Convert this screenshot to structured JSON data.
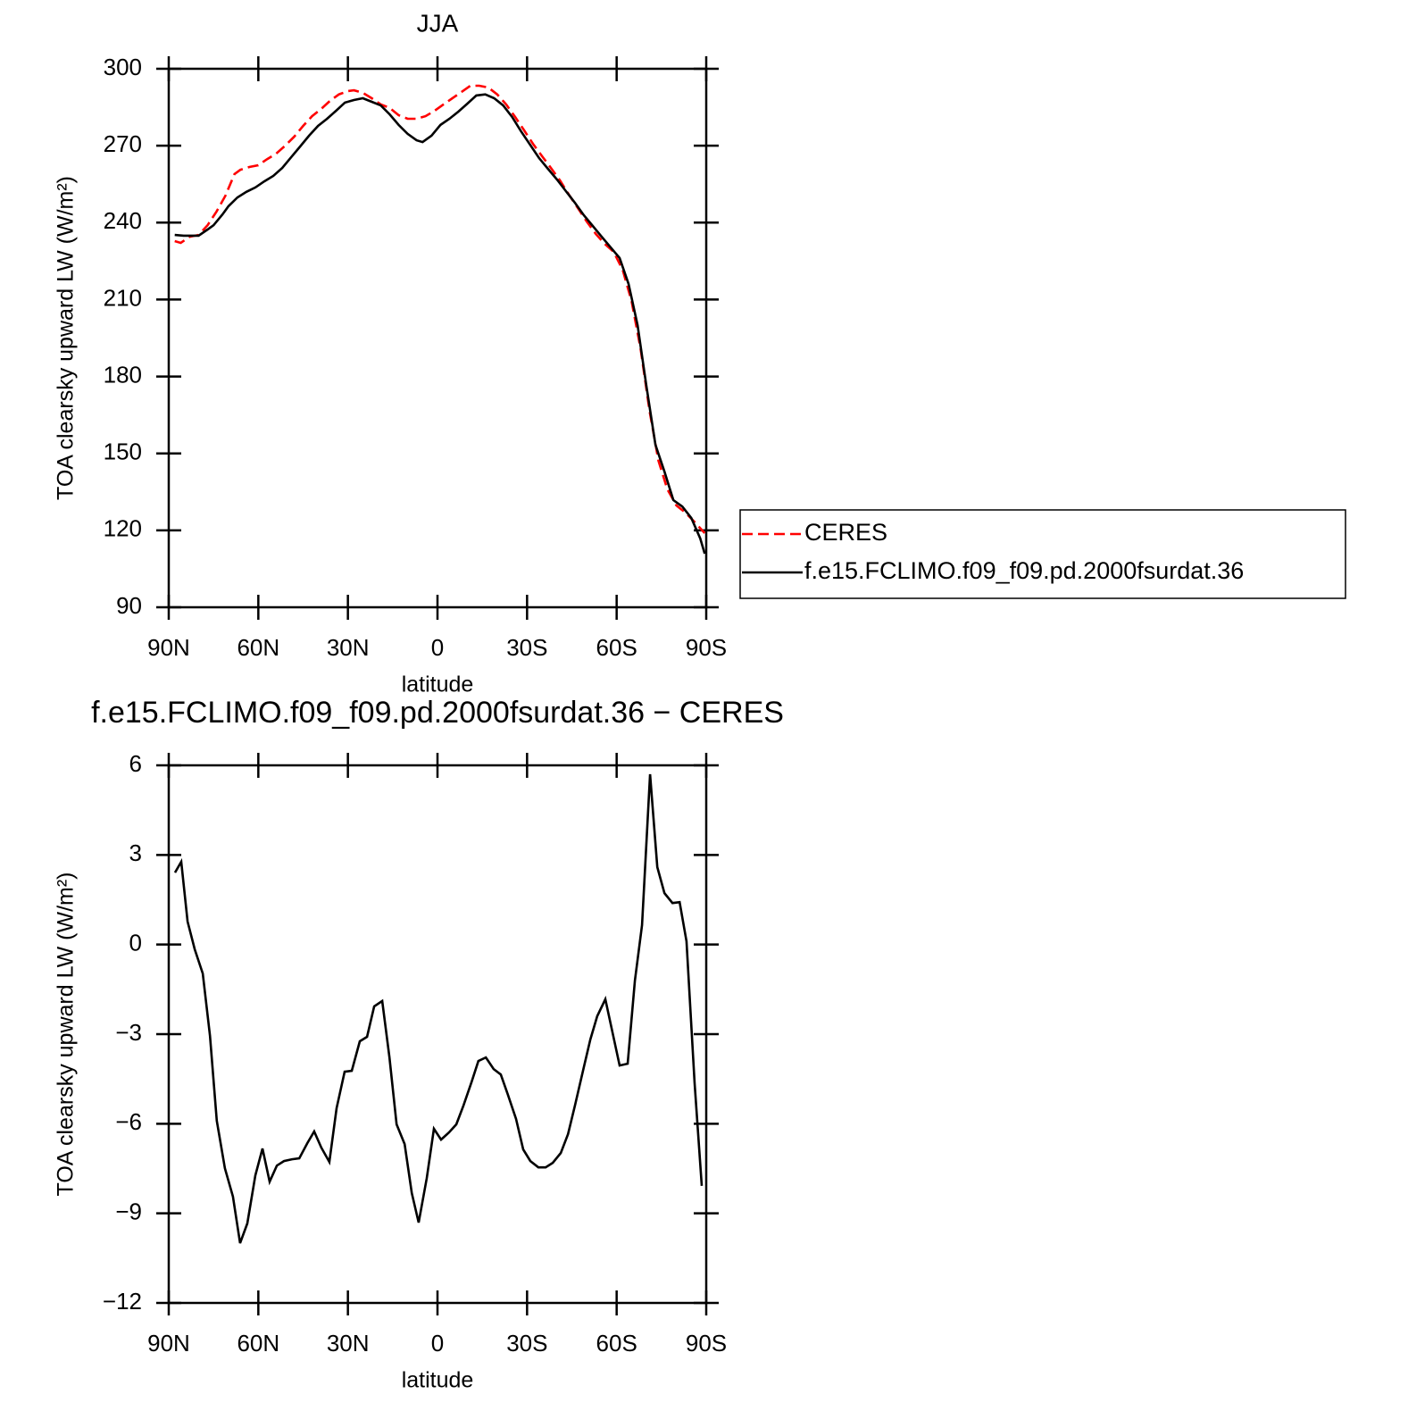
{
  "chart_data": [
    {
      "type": "line",
      "title": "JJA",
      "xlabel": "latitude",
      "ylabel": "TOA clearsky upward LW (W/m²)",
      "xlim": [
        90,
        -90
      ],
      "xticks": [
        {
          "value": 90,
          "label": "90N"
        },
        {
          "value": 60,
          "label": "60N"
        },
        {
          "value": 30,
          "label": "30N"
        },
        0,
        {
          "value": -30,
          "label": "30S"
        },
        {
          "value": -60,
          "label": "60S"
        },
        {
          "value": -90,
          "label": "90S"
        }
      ],
      "ylim": [
        90,
        300
      ],
      "yticks": [
        90,
        120,
        150,
        180,
        210,
        240,
        270,
        300
      ],
      "legend": "right",
      "series": [
        {
          "name": "CERES",
          "color": "#ff0000",
          "linestyle": "dashed",
          "x": [
            88,
            86,
            83,
            80,
            77,
            74,
            71,
            68,
            66,
            63,
            60,
            57,
            54,
            51,
            48,
            45,
            42,
            39,
            36,
            33,
            30,
            28,
            25,
            22,
            19,
            16,
            13,
            10,
            7,
            4,
            1,
            -2,
            -5,
            -8,
            -11,
            -14,
            -17,
            -20,
            -23,
            -26,
            -29,
            -32,
            -35,
            -38,
            -41,
            -44,
            -47,
            -50,
            -53,
            -56,
            -59,
            -62,
            -65,
            -68,
            -71,
            -74,
            -77,
            -80,
            -83,
            -86,
            -89.5
          ],
          "values": [
            232.8,
            232.1,
            234.5,
            235.2,
            239,
            244.3,
            250.5,
            258.9,
            260.6,
            261.7,
            262.4,
            264.8,
            266.9,
            270,
            273.5,
            277.7,
            281.5,
            284.3,
            287.5,
            290,
            291.3,
            291.6,
            290.6,
            288.5,
            286.1,
            284.7,
            281.9,
            280.5,
            280.5,
            281.5,
            283.6,
            286.1,
            288.5,
            290.9,
            293.4,
            293.4,
            292.7,
            290,
            286.1,
            281.2,
            276,
            270.7,
            265.9,
            261.3,
            256.5,
            250.9,
            245.7,
            240.4,
            235.6,
            231.7,
            228.6,
            221.6,
            209.4,
            191,
            166.6,
            147.1,
            136,
            129.7,
            126.9,
            123.4,
            118.9
          ]
        },
        {
          "name": "f.e15.FCLIMO.f09_f09.pd.2000fsurdat.36",
          "color": "#000000",
          "linestyle": "solid",
          "x": [
            88,
            85,
            80,
            77,
            75,
            72,
            70,
            67,
            64,
            61,
            58,
            55,
            52,
            49,
            46,
            43,
            40,
            37,
            34,
            31,
            28,
            25,
            22,
            19,
            16,
            13,
            10,
            7,
            5,
            2,
            -1,
            -4,
            -7,
            -10,
            -13,
            -16,
            -19,
            -22,
            -25,
            -28,
            -31,
            -34,
            -37,
            -40,
            -43,
            -46,
            -49,
            -52,
            -55,
            -58,
            -61,
            -64,
            -67,
            -70,
            -73,
            -76,
            -79,
            -82,
            -85,
            -88,
            -89.5
          ],
          "values": [
            235.2,
            234.9,
            234.9,
            237.3,
            239,
            243.2,
            246.4,
            249.8,
            252,
            253.7,
            256.1,
            258.2,
            261.3,
            265.5,
            269.7,
            273.9,
            277.7,
            280.5,
            283.6,
            286.8,
            287.8,
            288.5,
            287.1,
            285.7,
            282.2,
            278.1,
            274.6,
            272.1,
            271.4,
            273.9,
            278.1,
            280.5,
            283.3,
            286.4,
            289.6,
            290,
            288.5,
            285.7,
            281.2,
            275.6,
            270.4,
            265.2,
            261,
            256.8,
            252.3,
            247.8,
            242.9,
            238.7,
            234.5,
            230.3,
            226.2,
            216.1,
            200,
            176,
            153.4,
            142.9,
            131.8,
            129.3,
            124.8,
            116.8,
            110.9
          ]
        }
      ]
    },
    {
      "type": "line",
      "title": "f.e15.FCLIMO.f09_f09.pd.2000fsurdat.36 − CERES",
      "xlabel": "latitude",
      "ylabel": "TOA clearsky upward LW (W/m²)",
      "xlim": [
        90,
        -90
      ],
      "xticks": [
        {
          "value": 90,
          "label": "90N"
        },
        {
          "value": 60,
          "label": "60N"
        },
        {
          "value": 30,
          "label": "30N"
        },
        0,
        {
          "value": -30,
          "label": "30S"
        },
        {
          "value": -60,
          "label": "60S"
        },
        {
          "value": -90,
          "label": "90S"
        }
      ],
      "ylim": [
        -12,
        6
      ],
      "yticks": [
        {
          "value": -12,
          "label": "−12"
        },
        {
          "value": -9,
          "label": "−9"
        },
        {
          "value": -6,
          "label": "−6"
        },
        {
          "value": -3,
          "label": "−3"
        },
        0,
        3,
        6
      ],
      "color": "#000000",
      "x": [
        87.9,
        85.8,
        83.7,
        81.3,
        78.6,
        76.2,
        73.9,
        71.2,
        68.5,
        66.1,
        63.7,
        61.0,
        58.6,
        56.2,
        53.8,
        51.4,
        48.7,
        46.3,
        43.6,
        41.3,
        38.9,
        36.2,
        33.8,
        31.1,
        28.7,
        26.0,
        23.6,
        21.2,
        18.5,
        16.1,
        13.7,
        11.0,
        8.6,
        6.3,
        3.6,
        1.2,
        -1.2,
        -3.9,
        -6.3,
        -8.7,
        -11.4,
        -13.7,
        -16.2,
        -18.8,
        -21.2,
        -23.6,
        -26.3,
        -28.7,
        -31.1,
        -33.8,
        -36.2,
        -38.6,
        -41.3,
        -43.7,
        -46.1,
        -48.8,
        -51.2,
        -53.5,
        -56.2,
        -58.6,
        -61.0,
        -63.7,
        -66.1,
        -68.5,
        -71.2,
        -73.6,
        -76.0,
        -78.7,
        -81.1,
        -83.4,
        -86.1,
        -88.5
      ],
      "values": [
        2.41,
        2.77,
        0.77,
        -0.16,
        -0.97,
        -3.06,
        -5.9,
        -7.49,
        -8.44,
        -10.0,
        -9.34,
        -7.73,
        -6.83,
        -7.94,
        -7.4,
        -7.25,
        -7.19,
        -7.16,
        -6.65,
        -6.26,
        -6.8,
        -7.28,
        -5.48,
        -4.26,
        -4.23,
        -3.24,
        -3.09,
        -2.07,
        -1.89,
        -3.78,
        -6.02,
        -6.68,
        -8.32,
        -9.31,
        -7.82,
        -6.17,
        -6.53,
        -6.29,
        -6.02,
        -5.39,
        -4.61,
        -3.9,
        -3.78,
        -4.17,
        -4.35,
        -5.03,
        -5.84,
        -6.86,
        -7.25,
        -7.46,
        -7.46,
        -7.31,
        -6.98,
        -6.35,
        -5.36,
        -4.2,
        -3.18,
        -2.4,
        -1.83,
        -2.94,
        -4.05,
        -3.99,
        -1.21,
        0.65,
        5.7,
        2.59,
        1.72,
        1.39,
        1.42,
        0.11,
        -4.65,
        -8.08
      ]
    }
  ]
}
